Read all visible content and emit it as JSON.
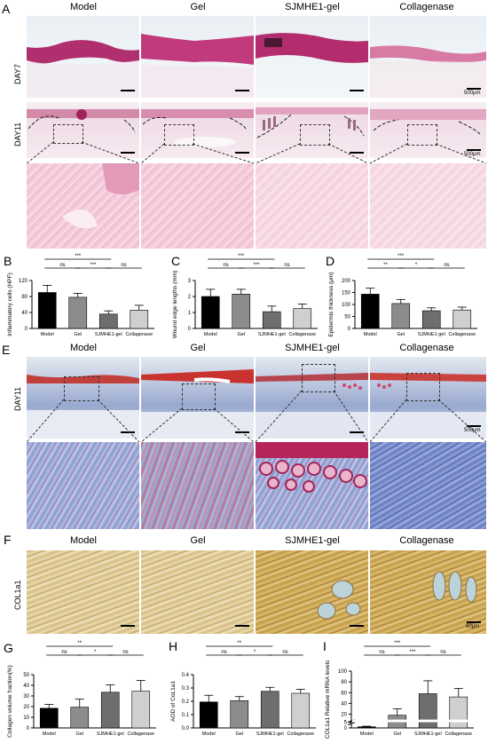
{
  "panels": {
    "A": {
      "label": "A",
      "columns": [
        "Model",
        "Gel",
        "SJMHE1-gel",
        "Collagenase"
      ],
      "rows": [
        "DAY7",
        "DAY11"
      ],
      "scale": "500μm"
    },
    "E": {
      "label": "E",
      "columns": [
        "Model",
        "Gel",
        "SJMHE1-gel",
        "Collagenase"
      ],
      "rows": [
        "DAY11"
      ],
      "scale": "500μm"
    },
    "F": {
      "label": "F",
      "columns": [
        "Model",
        "Gel",
        "SJMHE1-gel",
        "Collagenase"
      ],
      "rows": [
        "COL1a1"
      ],
      "scale": "50μm"
    }
  },
  "colors": {
    "model": "#000000",
    "gel": "#8c8c8c",
    "sjmhe1": "#6e6e6e",
    "collagenase": "#cfcfcf"
  },
  "chart_data": [
    {
      "panel": "B",
      "type": "bar",
      "categories": [
        "Model",
        "Gel",
        "SJMHE1-gel",
        "Collagenase"
      ],
      "values": [
        90,
        78,
        36,
        46
      ],
      "errors": [
        18,
        10,
        8,
        12
      ],
      "ylabel": "Inflammatory cells (HPF)",
      "ylim": [
        0,
        120
      ],
      "yticks": [
        0,
        40,
        80,
        120
      ],
      "sig": [
        {
          "from": 0,
          "to": 2,
          "text": "***",
          "level": 2
        },
        {
          "from": 0,
          "to": 1,
          "text": "ns",
          "level": 1
        },
        {
          "from": 1,
          "to": 2,
          "text": "***",
          "level": 1
        },
        {
          "from": 2,
          "to": 3,
          "text": "ns",
          "level": 1
        }
      ]
    },
    {
      "panel": "C",
      "type": "bar",
      "categories": [
        "Model",
        "Gel",
        "SJMHE1-gel",
        "Collagenase"
      ],
      "values": [
        2.0,
        2.15,
        1.05,
        1.25
      ],
      "errors": [
        0.45,
        0.3,
        0.35,
        0.28
      ],
      "ylabel": "Wound edge lengths (mm)",
      "ylim": [
        0,
        3
      ],
      "yticks": [
        0,
        1,
        2,
        3
      ],
      "sig": [
        {
          "from": 0,
          "to": 2,
          "text": "***",
          "level": 2
        },
        {
          "from": 0,
          "to": 1,
          "text": "ns",
          "level": 1
        },
        {
          "from": 1,
          "to": 2,
          "text": "***",
          "level": 1
        },
        {
          "from": 2,
          "to": 3,
          "text": "ns",
          "level": 1
        }
      ]
    },
    {
      "panel": "D",
      "type": "bar",
      "categories": [
        "Model",
        "Gel",
        "SJMHE1-gel",
        "Collagenase"
      ],
      "values": [
        143,
        104,
        74,
        77
      ],
      "errors": [
        25,
        17,
        12,
        12
      ],
      "ylabel": "Epidermis thickness (μm)",
      "ylim": [
        0,
        200
      ],
      "yticks": [
        0,
        50,
        100,
        150,
        200
      ],
      "sig": [
        {
          "from": 0,
          "to": 2,
          "text": "***",
          "level": 2
        },
        {
          "from": 0,
          "to": 1,
          "text": "**",
          "level": 1
        },
        {
          "from": 1,
          "to": 2,
          "text": "*",
          "level": 1
        },
        {
          "from": 2,
          "to": 3,
          "text": "ns",
          "level": 1
        }
      ]
    },
    {
      "panel": "G",
      "type": "bar",
      "categories": [
        "Model",
        "Gel",
        "SJMHE1-gel",
        "Collagenase"
      ],
      "values": [
        18.5,
        19.5,
        33.5,
        34.5
      ],
      "errors": [
        3.5,
        7.5,
        7,
        10
      ],
      "ylabel": "Collagen volume fraction(%)",
      "ylim": [
        0,
        50
      ],
      "yticks": [
        0,
        10,
        20,
        30,
        40,
        50
      ],
      "sig": [
        {
          "from": 0,
          "to": 2,
          "text": "**",
          "level": 2
        },
        {
          "from": 0,
          "to": 1,
          "text": "ns",
          "level": 1
        },
        {
          "from": 1,
          "to": 2,
          "text": "*",
          "level": 1
        },
        {
          "from": 2,
          "to": 3,
          "text": "ns",
          "level": 1
        }
      ]
    },
    {
      "panel": "H",
      "type": "bar",
      "categories": [
        "Model",
        "Gel",
        "SJMHE1-gel",
        "Collagenase"
      ],
      "values": [
        0.195,
        0.205,
        0.275,
        0.26
      ],
      "errors": [
        0.05,
        0.03,
        0.03,
        0.03
      ],
      "ylabel": "AOD of CoL1a1",
      "ylim": [
        0,
        0.4
      ],
      "yticks": [
        0.0,
        0.1,
        0.2,
        0.3,
        0.4
      ],
      "sig": [
        {
          "from": 0,
          "to": 2,
          "text": "**",
          "level": 2
        },
        {
          "from": 0,
          "to": 1,
          "text": "ns",
          "level": 1
        },
        {
          "from": 1,
          "to": 2,
          "text": "*",
          "level": 1
        },
        {
          "from": 2,
          "to": 3,
          "text": "ns",
          "level": 1
        }
      ]
    },
    {
      "panel": "I",
      "type": "bar",
      "categories": [
        "Model",
        "Gel",
        "SJMHE1-gel",
        "Collagenase"
      ],
      "values": [
        1,
        18,
        58,
        52
      ],
      "errors": [
        0.5,
        12,
        24,
        16
      ],
      "ylabel": "COL1a1 Relative mRNA levels",
      "ylim": [
        0,
        100
      ],
      "yticks": [
        0,
        5,
        20,
        40,
        60,
        80,
        100
      ],
      "axis_break": [
        5,
        5
      ],
      "sig": [
        {
          "from": 0,
          "to": 2,
          "text": "***",
          "level": 2
        },
        {
          "from": 0,
          "to": 1,
          "text": "ns",
          "level": 1
        },
        {
          "from": 1,
          "to": 2,
          "text": "***",
          "level": 1
        },
        {
          "from": 2,
          "to": 3,
          "text": "ns",
          "level": 1
        }
      ]
    }
  ]
}
